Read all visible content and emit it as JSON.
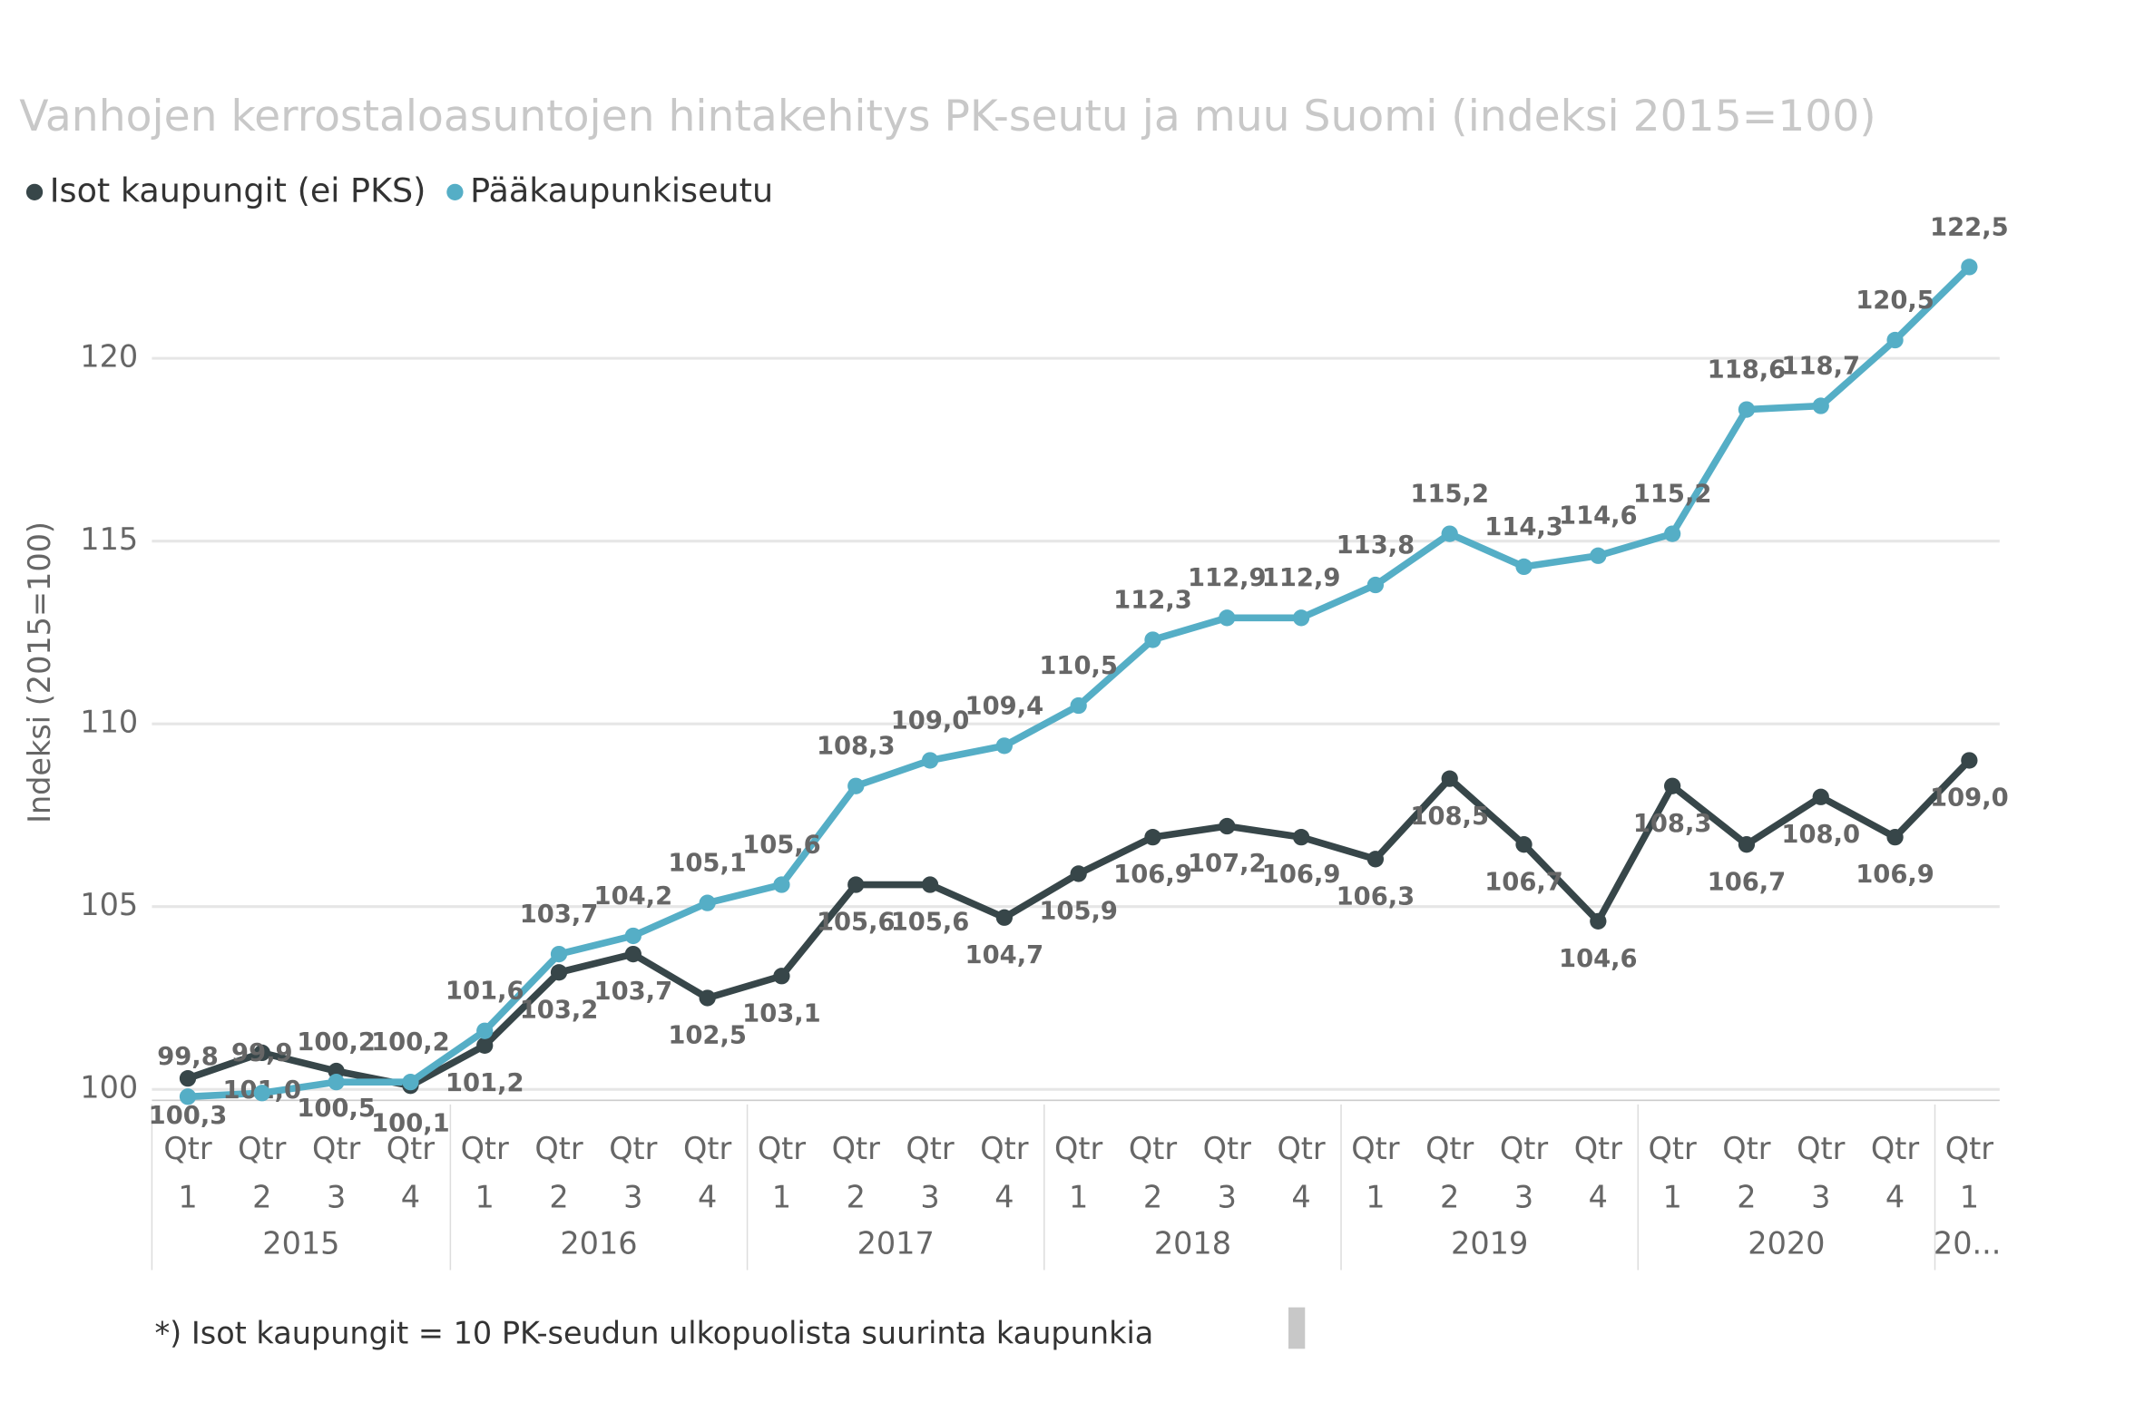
{
  "chart_data": {
    "type": "line",
    "title": "Vanhojen kerrostaloasuntojen hintakehitys PK-seutu ja muu Suomi (indeksi 2015=100)",
    "y_label": "Indeksi (2015=100)",
    "footnote": "*) Isot kaupungit = 10 PK-seudun ulkopuolista suurinta kaupunkia",
    "categories": [
      "Qtr 1",
      "Qtr 2",
      "Qtr 3",
      "Qtr 4",
      "Qtr 1",
      "Qtr 2",
      "Qtr 3",
      "Qtr 4",
      "Qtr 1",
      "Qtr 2",
      "Qtr 3",
      "Qtr 4",
      "Qtr 1",
      "Qtr 2",
      "Qtr 3",
      "Qtr 4",
      "Qtr 1",
      "Qtr 2",
      "Qtr 3",
      "Qtr 4",
      "Qtr 1",
      "Qtr 2",
      "Qtr 3",
      "Qtr 4",
      "Qtr 1"
    ],
    "years": [
      "2015",
      "2016",
      "2017",
      "2018",
      "2019",
      "2020",
      "20..."
    ],
    "series": [
      {
        "name": "Isot kaupungit (ei PKS)",
        "color": "#374649",
        "values": [
          100.3,
          101.0,
          100.5,
          100.1,
          101.2,
          103.2,
          103.7,
          102.5,
          103.1,
          105.6,
          105.6,
          104.7,
          105.9,
          106.9,
          107.2,
          106.9,
          106.3,
          108.5,
          106.7,
          104.6,
          108.3,
          106.7,
          108.0,
          106.9,
          109.0
        ],
        "value_labels": [
          "100,3",
          "101,0",
          "100,5",
          "100,1",
          "101,2",
          "103,2",
          "103,7",
          "102,5",
          "103,1",
          "105,6",
          "105,6",
          "104,7",
          "105,9",
          "106,9",
          "107,2",
          "106,9",
          "106,3",
          "108,5",
          "106,7",
          "104,6",
          "108,3",
          "106,7",
          "108,0",
          "106,9",
          "109,0"
        ]
      },
      {
        "name": "Pääkaupunkiseutu",
        "color": "#55aec6",
        "values": [
          99.8,
          99.9,
          100.2,
          100.2,
          101.6,
          103.7,
          104.2,
          105.1,
          105.6,
          108.3,
          109.0,
          109.4,
          110.5,
          112.3,
          112.9,
          112.9,
          113.8,
          115.2,
          114.3,
          114.6,
          115.2,
          118.6,
          118.7,
          120.5,
          122.5
        ],
        "value_labels": [
          "99,8",
          "99,9",
          "100,2",
          "100,2",
          "101,6",
          "103,7",
          "104,2",
          "105,1",
          "105,6",
          "108,3",
          "109,0",
          "109,4",
          "110,5",
          "112,3",
          "112,9",
          "112,9",
          "113,8",
          "115,2",
          "114,3",
          "114,6",
          "115,2",
          "118,6",
          "118,7",
          "120,5",
          "122,5"
        ]
      }
    ],
    "ylim": [
      99.7,
      123
    ],
    "yticks": [
      100,
      105,
      110,
      115,
      120
    ],
    "grid": true,
    "legend": "top-left"
  }
}
